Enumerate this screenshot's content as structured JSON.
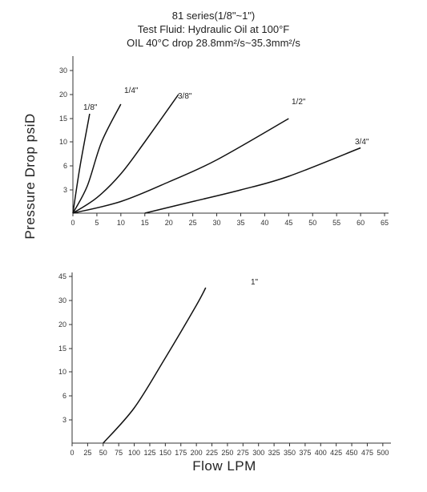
{
  "title_lines": [
    "81 series(1/8\"~1\")",
    "Test Fluid: Hydraulic Oil at 100°F",
    "OIL 40°C drop 28.8mm²/s~35.3mm²/s"
  ],
  "shared_ylabel": "Pressure Drop psiD",
  "chart_data": [
    {
      "type": "line",
      "xlabel": "",
      "ylabel": "Pressure Drop psiD",
      "x_ticks": [
        0,
        5,
        10,
        15,
        20,
        25,
        30,
        35,
        40,
        45,
        50,
        55,
        60,
        65
      ],
      "y_ticks": [
        "3",
        "6",
        "10",
        "15",
        "20",
        "30"
      ],
      "xlim": [
        0,
        65
      ],
      "grid": false,
      "series": [
        {
          "name": "1/8\"",
          "x": [
            0,
            1.5,
            3.5
          ],
          "y": [
            0,
            6,
            16
          ]
        },
        {
          "name": "1/4\"",
          "x": [
            0,
            3,
            6,
            10
          ],
          "y": [
            0,
            3.5,
            10,
            18
          ]
        },
        {
          "name": "3/8\"",
          "x": [
            0,
            5,
            10,
            15,
            22
          ],
          "y": [
            0,
            2,
            5,
            10,
            20
          ]
        },
        {
          "name": "1/2\"",
          "x": [
            0,
            10,
            20,
            30,
            45
          ],
          "y": [
            0,
            1.5,
            4,
            7,
            15
          ]
        },
        {
          "name": "3/4\"",
          "x": [
            15,
            25,
            35,
            45,
            60
          ],
          "y": [
            0,
            1.5,
            3,
            4.7,
            9
          ]
        }
      ]
    },
    {
      "type": "line",
      "xlabel": "Flow LPM",
      "ylabel": "",
      "x_ticks": [
        0,
        25,
        50,
        75,
        100,
        125,
        150,
        175,
        200,
        225,
        250,
        275,
        300,
        325,
        350,
        375,
        400,
        425,
        450,
        475,
        500
      ],
      "y_ticks": [
        "3",
        "6",
        "10",
        "15",
        "20",
        "30",
        "45"
      ],
      "xlim": [
        0,
        500
      ],
      "grid": false,
      "series": [
        {
          "name": "1\"",
          "x": [
            50,
            100,
            150,
            200,
            215
          ],
          "y": [
            0,
            4.5,
            13,
            28,
            38
          ]
        }
      ]
    }
  ]
}
